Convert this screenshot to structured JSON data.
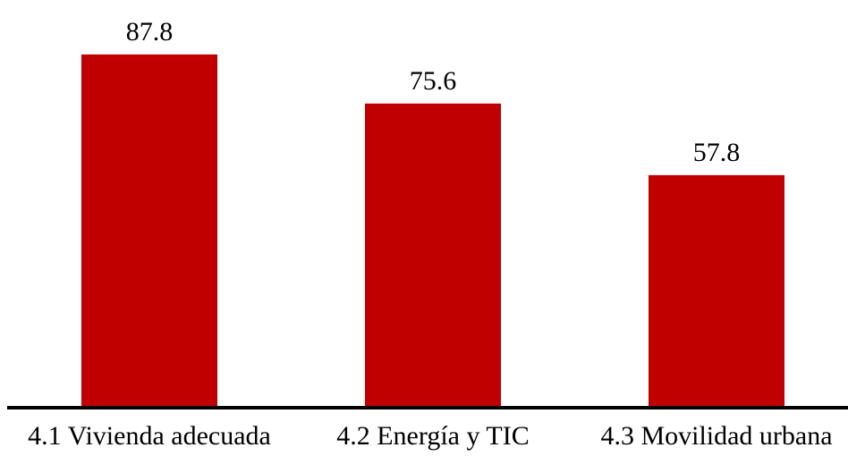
{
  "chart_data": {
    "type": "bar",
    "title": "",
    "xlabel": "",
    "ylabel": "",
    "categories": [
      "4.1 Vivienda adecuada",
      "4.2 Energía y TIC",
      "4.3 Movilidad urbana"
    ],
    "values": [
      87.8,
      75.6,
      57.8
    ],
    "data_labels": [
      "87.8",
      "75.6",
      "57.8"
    ],
    "ylim": [
      0,
      100
    ],
    "grid": false,
    "legend": "none",
    "colors": {
      "bar": "#c00000",
      "axis": "#000000",
      "text": "#000000"
    }
  }
}
